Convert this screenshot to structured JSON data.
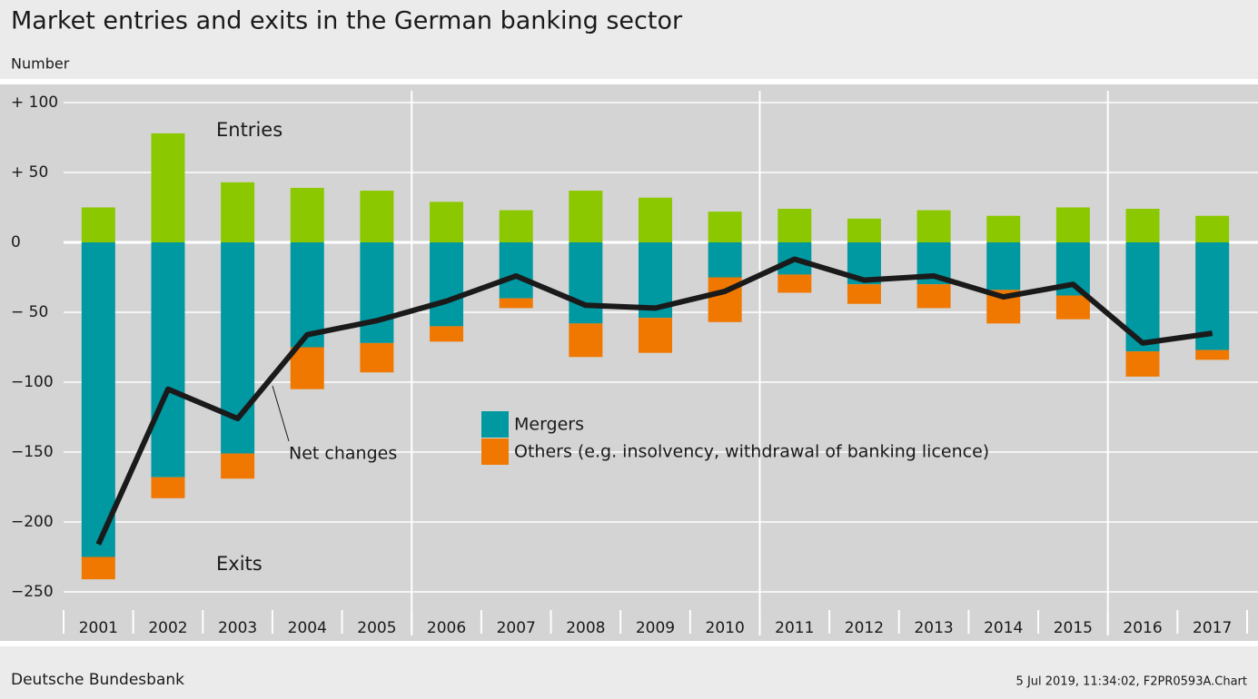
{
  "chart_data": {
    "type": "bar",
    "title": "Market entries and exits in the German banking sector",
    "y_label": "Number",
    "source": "Deutsche Bundesbank",
    "footnote": "5 Jul 2019, 11:34:02, F2PR0593A.Chart",
    "exits_label": "Exits",
    "categories": [
      "2001",
      "2002",
      "2003",
      "2004",
      "2005",
      "2006",
      "2007",
      "2008",
      "2009",
      "2010",
      "2011",
      "2012",
      "2013",
      "2014",
      "2015",
      "2016",
      "2017"
    ],
    "series": [
      {
        "name": "Entries",
        "type": "bar",
        "color": "#8cc800",
        "values": [
          25,
          78,
          43,
          39,
          37,
          29,
          23,
          37,
          32,
          22,
          24,
          17,
          23,
          19,
          25,
          24,
          19
        ]
      },
      {
        "name": "Mergers",
        "type": "bar",
        "color": "#0098a1",
        "values": [
          -225,
          -168,
          -151,
          -75,
          -72,
          -60,
          -40,
          -58,
          -54,
          -25,
          -23,
          -30,
          -30,
          -34,
          -38,
          -78,
          -77
        ]
      },
      {
        "name": "Others (e.g. insolvency, withdrawal of banking licence)",
        "type": "bar",
        "color": "#f07800",
        "values": [
          -16,
          -15,
          -18,
          -30,
          -21,
          -11,
          -7,
          -24,
          -25,
          -32,
          -13,
          -14,
          -17,
          -24,
          -17,
          -18,
          -7
        ]
      },
      {
        "name": "Net changes",
        "type": "line",
        "color": "#1a1a1a",
        "values": [
          -216,
          -105,
          -126,
          -66,
          -56,
          -42,
          -24,
          -45,
          -47,
          -35,
          -12,
          -27,
          -24,
          -39,
          -30,
          -72,
          -65
        ]
      }
    ],
    "ylim": [
      -270,
      100
    ],
    "yticks": [
      {
        "value": 100,
        "label": "+ 100"
      },
      {
        "value": 50,
        "label": "+  50"
      },
      0,
      {
        "value": -50,
        "label": "−  50"
      },
      {
        "value": -100,
        "label": "−100"
      },
      {
        "value": -150,
        "label": "−150"
      },
      {
        "value": -200,
        "label": "−200"
      },
      {
        "value": -250,
        "label": "−250"
      }
    ],
    "grid": true
  }
}
